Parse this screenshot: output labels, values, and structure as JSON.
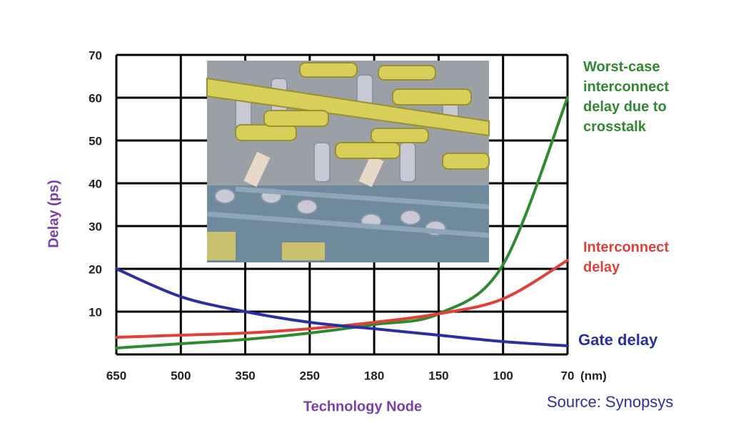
{
  "chart_data": {
    "type": "line",
    "xlabel": "Technology Node",
    "ylabel": "Delay (ps)",
    "x_unit": "(nm)",
    "source": "Source: Synopsys",
    "categories": [
      "650",
      "500",
      "350",
      "250",
      "180",
      "150",
      "100",
      "70"
    ],
    "ylim": [
      0,
      70
    ],
    "yticks": [
      10,
      20,
      30,
      40,
      50,
      60,
      70
    ],
    "grid": true,
    "series": [
      {
        "name": "Worst-case interconnect delay due to crosstalk",
        "color": "#2f8a2f",
        "values": [
          1.5,
          2.5,
          3.5,
          5,
          7,
          9.5,
          21,
          60
        ]
      },
      {
        "name": "Interconnect delay",
        "color": "#e0403a",
        "values": [
          4,
          4.5,
          5,
          6,
          7.5,
          9.5,
          13,
          22
        ]
      },
      {
        "name": "Gate delay",
        "color": "#2b2fa0",
        "values": [
          20,
          13.5,
          10,
          7.5,
          6,
          4.5,
          3,
          2
        ]
      }
    ]
  }
}
